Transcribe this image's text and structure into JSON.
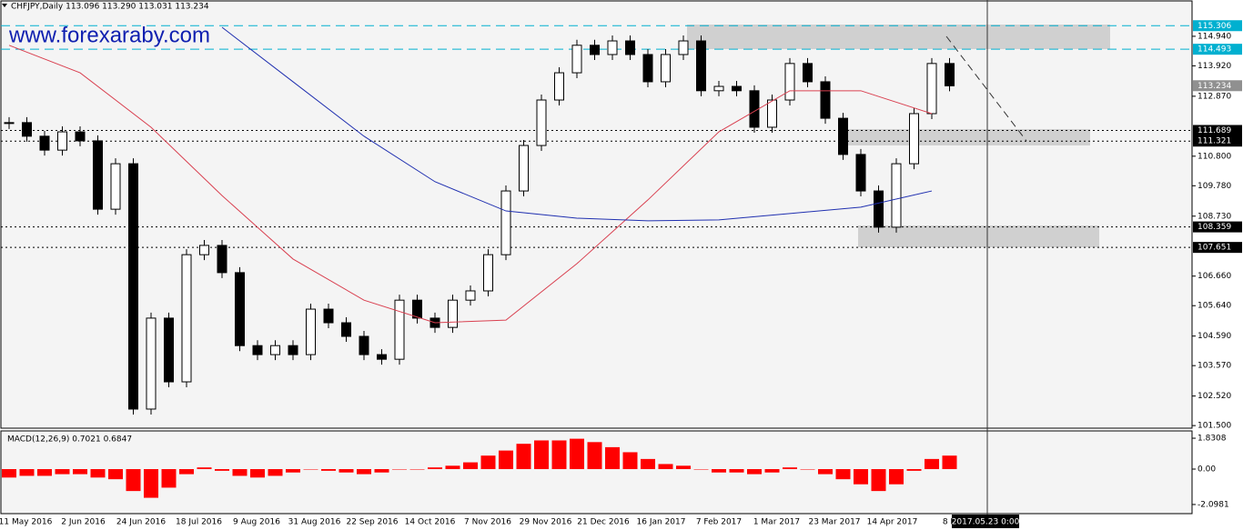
{
  "chart_data": {
    "type": "candlestick",
    "title": "CHFJPY,Daily  113.096 113.290 113.031 113.234",
    "watermark": "www.forexaraby.com",
    "close": [
      111.96,
      111.49,
      111.01,
      111.64,
      111.33,
      108.97,
      110.54,
      102.07,
      105.21,
      103.01,
      107.4,
      107.72,
      106.78,
      104.26,
      103.95,
      104.26,
      103.95,
      105.52,
      105.05,
      104.58,
      103.95,
      103.79,
      105.83,
      105.21,
      104.89,
      105.83,
      106.15,
      107.4,
      109.6,
      111.17,
      112.74,
      113.68,
      114.63,
      114.31,
      114.78,
      114.31,
      113.37,
      114.31,
      114.78,
      113.06,
      113.21,
      113.06,
      111.8,
      112.74,
      114.0,
      113.37,
      112.11,
      110.86,
      109.6,
      108.35,
      110.54,
      112.27,
      114.0,
      113.23
    ],
    "ma_series": [
      {
        "color": "#d94050",
        "values": [
          114.63,
          113.68,
          111.8,
          109.44,
          107.25,
          105.83,
          105.05,
          105.14,
          107.09,
          109.29,
          111.64,
          113.06,
          113.06,
          112.27
        ]
      },
      {
        "color": "#2030b0",
        "values": [
          null,
          null,
          null,
          115.25,
          113.37,
          111.49,
          109.92,
          108.91,
          108.66,
          108.57,
          108.6,
          108.82,
          109.04,
          109.6
        ]
      }
    ],
    "ylim": [
      101.41,
      116.13
    ],
    "yticks": [
      {
        "value": 101.5,
        "label": "101.500"
      },
      {
        "value": 102.52,
        "label": "102.520"
      },
      {
        "value": 103.57,
        "label": "103.570"
      },
      {
        "value": 104.59,
        "label": "104.590"
      },
      {
        "value": 105.64,
        "label": "105.640"
      },
      {
        "value": 106.66,
        "label": "106.660"
      },
      {
        "value": 108.73,
        "label": "108.730"
      },
      {
        "value": 109.78,
        "label": "109.780"
      },
      {
        "value": 110.8,
        "label": "110.800"
      },
      {
        "value": 112.87,
        "label": "112.870"
      },
      {
        "value": 113.92,
        "label": "113.920"
      },
      {
        "value": 114.94,
        "label": "114.940"
      }
    ],
    "levels": [
      {
        "value": 115.306,
        "color": "#00b0d0"
      },
      {
        "value": 114.493,
        "color": "#00b0d0"
      },
      {
        "value": 113.234,
        "color": "#909090"
      },
      {
        "value": 111.689,
        "color": "#000000"
      },
      {
        "value": 111.321,
        "color": "#000000"
      },
      {
        "value": 108.359,
        "color": "#000000"
      },
      {
        "value": 107.651,
        "color": "#000000"
      }
    ],
    "x_labels": [
      "11 May 2016",
      "2 Jun 2016",
      "24 Jun 2016",
      "18 Jul 2016",
      "9 Aug 2016",
      "31 Aug 2016",
      "22 Sep 2016",
      "14 Oct 2016",
      "7 Nov 2016",
      "29 Nov 2016",
      "21 Dec 2016",
      "16 Jan 2017",
      "7 Feb 2017",
      "1 Mar 2017",
      "23 Mar 2017",
      "14 Apr 2017",
      "8 M"
    ],
    "cursor_time": "2017.05.23 0:00",
    "macd": {
      "title": "MACD(12,26,9) 0.7021 0.6847",
      "color": "#ff0000",
      "values": [
        -0.5,
        -0.4,
        -0.4,
        -0.3,
        -0.3,
        -0.5,
        -0.6,
        -1.3,
        -1.7,
        -1.1,
        -0.3,
        0.1,
        -0.1,
        -0.4,
        -0.5,
        -0.4,
        -0.2,
        0.0,
        -0.1,
        -0.2,
        -0.3,
        -0.2,
        0.0,
        0.0,
        0.1,
        0.2,
        0.4,
        0.8,
        1.1,
        1.5,
        1.7,
        1.7,
        1.8,
        1.6,
        1.3,
        1.0,
        0.6,
        0.3,
        0.2,
        0.0,
        -0.2,
        -0.2,
        -0.3,
        -0.2,
        0.1,
        0.0,
        -0.3,
        -0.6,
        -0.9,
        -1.3,
        -0.9,
        -0.1,
        0.6,
        0.8
      ],
      "ylim": [
        -2.64,
        2.21
      ],
      "yticks": [
        {
          "value": 1.8308,
          "label": "1.8308"
        },
        {
          "value": 0,
          "label": "0.00"
        },
        {
          "value": -2.0981,
          "label": "-2.0981"
        }
      ]
    }
  }
}
